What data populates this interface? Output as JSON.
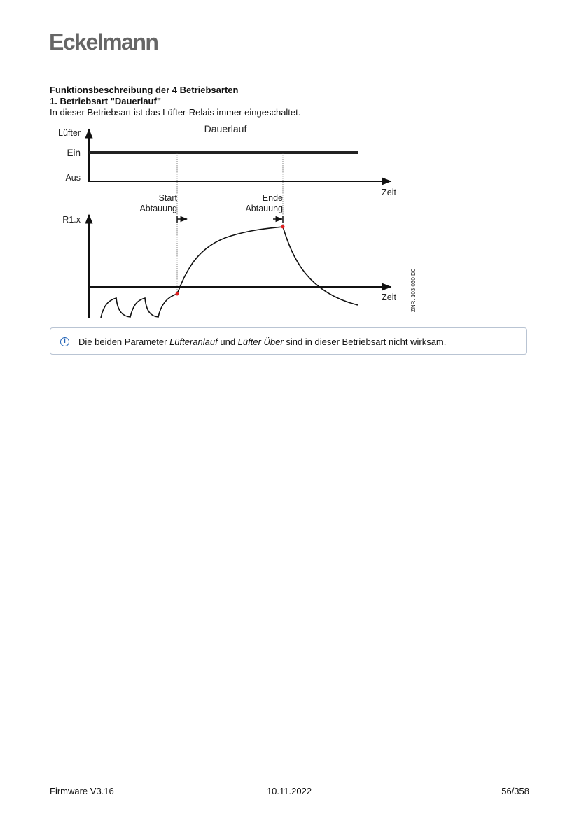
{
  "header": {
    "logo": "Eckelmann"
  },
  "content": {
    "heading": "Funktionsbeschreibung der 4 Betriebsarten",
    "subheading": "1. Betriebsart \"Dauerlauf\"",
    "paragraph": "In dieser Betriebsart ist das Lüfter-Relais immer eingeschaltet."
  },
  "diagram": {
    "title": "Dauerlauf",
    "top_y_label": "Lüfter",
    "top_level_on": "Ein",
    "top_level_off": "Aus",
    "x_label": "Zeit",
    "bottom_y_label": "R1.x",
    "event_start_line1": "Start",
    "event_start_line2": "Abtauung",
    "event_end_line1": "Ende",
    "event_end_line2": "Abtauung",
    "drawing_id": "ZNR. 103 030 D0",
    "colors": {
      "line": "#111111",
      "marker": "#e02020"
    }
  },
  "info": {
    "icon": "info-circle-icon",
    "text_before": "Die beiden Parameter ",
    "param1": "Lüfteranlauf",
    "text_mid": " und ",
    "param2": "Lüfter Über",
    "text_after": " sind in dieser Betriebsart nicht wirksam.",
    "color": "#2465b8"
  },
  "footer": {
    "left": "Firmware V3.16",
    "center": "10.11.2022",
    "right": "56/358"
  }
}
